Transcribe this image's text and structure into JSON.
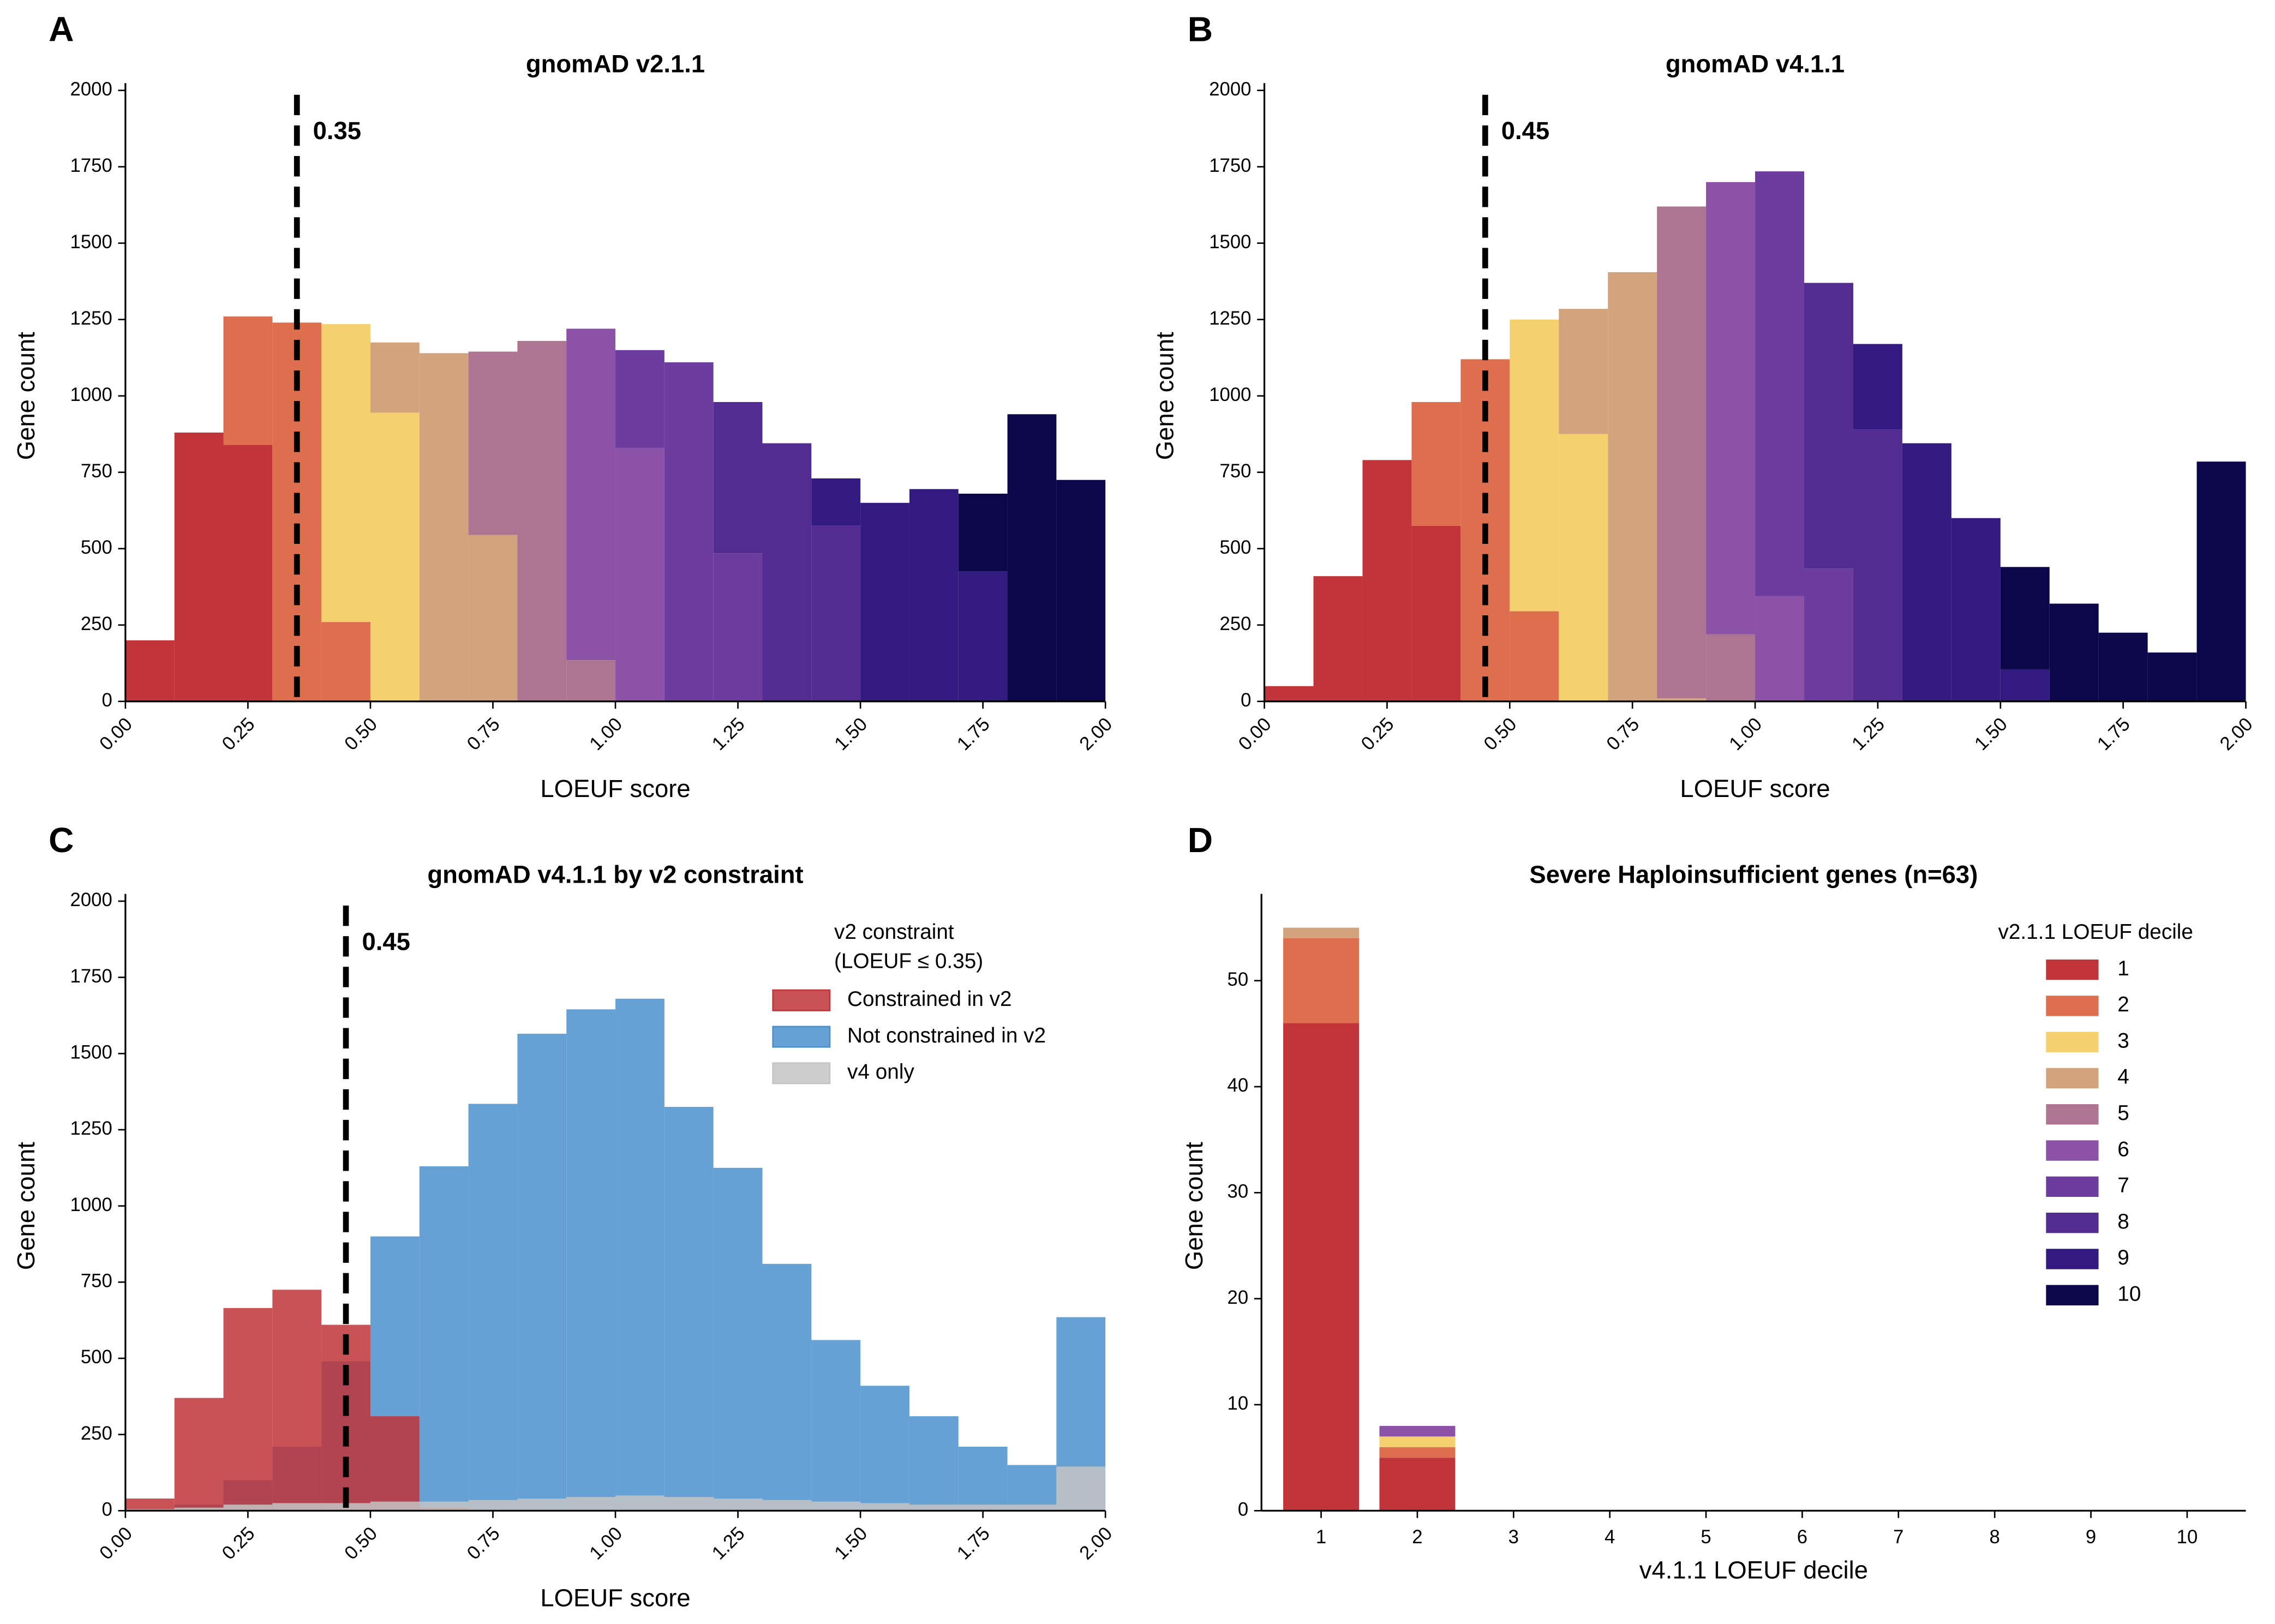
{
  "chart_data": [
    {
      "panel": "A",
      "type": "histogram",
      "stacked": true,
      "title": "gnomAD v2.1.1",
      "x_label": "LOEUF score",
      "y_label": "Gene count",
      "bins": [
        0,
        0.1,
        0.2,
        0.3,
        0.4,
        0.5,
        0.6,
        0.7,
        0.8,
        0.9,
        1.0,
        1.1,
        1.2,
        1.3,
        1.4,
        1.5,
        1.6,
        1.7,
        1.8,
        1.9,
        2.0
      ],
      "series": [
        {
          "color": "#c0343a",
          "values": [
            200,
            880,
            840,
            0,
            0,
            0,
            0,
            0,
            0,
            0,
            0,
            0,
            0,
            0,
            0,
            0,
            0,
            0,
            0,
            0
          ]
        },
        {
          "color": "#dd6e4e",
          "values": [
            0,
            0,
            420,
            1240,
            260,
            0,
            0,
            0,
            0,
            0,
            0,
            0,
            0,
            0,
            0,
            0,
            0,
            0,
            0,
            0
          ]
        },
        {
          "color": "#f5d06e",
          "values": [
            0,
            0,
            0,
            0,
            975,
            945,
            0,
            0,
            0,
            0,
            0,
            0,
            0,
            0,
            0,
            0,
            0,
            0,
            0,
            0
          ]
        },
        {
          "color": "#d3a37e",
          "values": [
            0,
            0,
            0,
            0,
            0,
            230,
            1140,
            545,
            0,
            0,
            0,
            0,
            0,
            0,
            0,
            0,
            0,
            0,
            0,
            0
          ]
        },
        {
          "color": "#ae7592",
          "values": [
            0,
            0,
            0,
            0,
            0,
            0,
            0,
            600,
            1180,
            135,
            0,
            0,
            0,
            0,
            0,
            0,
            0,
            0,
            0,
            0
          ]
        },
        {
          "color": "#8b52a8",
          "values": [
            0,
            0,
            0,
            0,
            0,
            0,
            0,
            0,
            0,
            1085,
            830,
            0,
            0,
            0,
            0,
            0,
            0,
            0,
            0,
            0
          ]
        },
        {
          "color": "#6c3d9e",
          "values": [
            0,
            0,
            0,
            0,
            0,
            0,
            0,
            0,
            0,
            0,
            320,
            1110,
            485,
            0,
            0,
            0,
            0,
            0,
            0,
            0
          ]
        },
        {
          "color": "#532c91",
          "values": [
            0,
            0,
            0,
            0,
            0,
            0,
            0,
            0,
            0,
            0,
            0,
            0,
            495,
            845,
            575,
            0,
            0,
            0,
            0,
            0
          ]
        },
        {
          "color": "#321a80",
          "values": [
            0,
            0,
            0,
            0,
            0,
            0,
            0,
            0,
            0,
            0,
            0,
            0,
            0,
            0,
            155,
            650,
            695,
            425,
            0,
            0
          ]
        },
        {
          "color": "#0c064a",
          "values": [
            0,
            0,
            0,
            0,
            0,
            0,
            0,
            0,
            0,
            0,
            0,
            0,
            0,
            0,
            0,
            0,
            0,
            255,
            940,
            725
          ]
        }
      ],
      "vline": 0.35,
      "xlim": [
        0,
        2
      ],
      "ylim": [
        0,
        2000
      ],
      "xticks": [
        {
          "value": 0,
          "label": "0.00"
        },
        {
          "value": 0.25,
          "label": "0.25"
        },
        {
          "value": 0.5,
          "label": "0.50"
        },
        {
          "value": 0.75,
          "label": "0.75"
        },
        {
          "value": 1,
          "label": "1.00"
        },
        {
          "value": 1.25,
          "label": "1.25"
        },
        {
          "value": 1.5,
          "label": "1.50"
        },
        {
          "value": 1.75,
          "label": "1.75"
        },
        {
          "value": 2,
          "label": "2.00"
        }
      ],
      "yticks": [
        0,
        250,
        500,
        750,
        1000,
        1250,
        1500,
        1750,
        2000
      ]
    },
    {
      "panel": "B",
      "type": "histogram",
      "stacked": true,
      "title": "gnomAD v4.1.1",
      "x_label": "LOEUF score",
      "y_label": "Gene count",
      "bins": [
        0,
        0.1,
        0.2,
        0.3,
        0.4,
        0.5,
        0.6,
        0.7,
        0.8,
        0.9,
        1.0,
        1.1,
        1.2,
        1.3,
        1.4,
        1.5,
        1.6,
        1.7,
        1.8,
        1.9,
        2.0
      ],
      "series": [
        {
          "color": "#c0343a",
          "values": [
            50,
            410,
            790,
            575,
            0,
            0,
            0,
            0,
            0,
            0,
            0,
            0,
            0,
            0,
            0,
            0,
            0,
            0,
            0,
            0
          ]
        },
        {
          "color": "#dd6e4e",
          "values": [
            0,
            0,
            0,
            405,
            1120,
            295,
            0,
            0,
            0,
            0,
            0,
            0,
            0,
            0,
            0,
            0,
            0,
            0,
            0,
            0
          ]
        },
        {
          "color": "#f5d06e",
          "values": [
            0,
            0,
            0,
            0,
            0,
            955,
            875,
            0,
            0,
            0,
            0,
            0,
            0,
            0,
            0,
            0,
            0,
            0,
            0,
            0
          ]
        },
        {
          "color": "#d3a37e",
          "values": [
            0,
            0,
            0,
            0,
            0,
            0,
            410,
            1405,
            10,
            0,
            0,
            0,
            0,
            0,
            0,
            0,
            0,
            0,
            0,
            0
          ]
        },
        {
          "color": "#ae7592",
          "values": [
            0,
            0,
            0,
            0,
            0,
            0,
            0,
            0,
            1610,
            220,
            0,
            0,
            0,
            0,
            0,
            0,
            0,
            0,
            0,
            0
          ]
        },
        {
          "color": "#8b52a8",
          "values": [
            0,
            0,
            0,
            0,
            0,
            0,
            0,
            0,
            0,
            1480,
            345,
            0,
            0,
            0,
            0,
            0,
            0,
            0,
            0,
            0
          ]
        },
        {
          "color": "#6c3d9e",
          "values": [
            0,
            0,
            0,
            0,
            0,
            0,
            0,
            0,
            0,
            0,
            1390,
            435,
            0,
            0,
            0,
            0,
            0,
            0,
            0,
            0
          ]
        },
        {
          "color": "#532c91",
          "values": [
            0,
            0,
            0,
            0,
            0,
            0,
            0,
            0,
            0,
            0,
            0,
            935,
            890,
            0,
            0,
            0,
            0,
            0,
            0,
            0
          ]
        },
        {
          "color": "#321a80",
          "values": [
            0,
            0,
            0,
            0,
            0,
            0,
            0,
            0,
            0,
            0,
            0,
            0,
            280,
            845,
            600,
            105,
            0,
            0,
            0,
            0
          ]
        },
        {
          "color": "#0c064a",
          "values": [
            0,
            0,
            0,
            0,
            0,
            0,
            0,
            0,
            0,
            0,
            0,
            0,
            0,
            0,
            0,
            335,
            320,
            225,
            160,
            785
          ]
        }
      ],
      "vline": 0.45,
      "xlim": [
        0,
        2
      ],
      "ylim": [
        0,
        2000
      ],
      "xticks": [
        {
          "value": 0,
          "label": "0.00"
        },
        {
          "value": 0.25,
          "label": "0.25"
        },
        {
          "value": 0.5,
          "label": "0.50"
        },
        {
          "value": 0.75,
          "label": "0.75"
        },
        {
          "value": 1,
          "label": "1.00"
        },
        {
          "value": 1.25,
          "label": "1.25"
        },
        {
          "value": 1.5,
          "label": "1.50"
        },
        {
          "value": 1.75,
          "label": "1.75"
        },
        {
          "value": 2,
          "label": "2.00"
        }
      ],
      "yticks": [
        0,
        250,
        500,
        750,
        1000,
        1250,
        1500,
        1750,
        2000
      ]
    },
    {
      "panel": "C",
      "type": "histogram",
      "stacked": false,
      "title": "gnomAD v4.1.1 by v2 constraint",
      "x_label": "LOEUF score",
      "y_label": "Gene count",
      "legend_title": [
        "v2 constraint",
        "(LOEUF ≤ 0.35)"
      ],
      "legend": "upper right",
      "bins": [
        0,
        0.1,
        0.2,
        0.3,
        0.4,
        0.5,
        0.6,
        0.7,
        0.8,
        0.9,
        1.0,
        1.1,
        1.2,
        1.3,
        1.4,
        1.5,
        1.6,
        1.7,
        1.8,
        1.9,
        2.0
      ],
      "series": [
        {
          "name": "Constrained in v2",
          "color": "#c0343a",
          "values": [
            40,
            370,
            665,
            725,
            610,
            310,
            10,
            0,
            0,
            0,
            0,
            0,
            0,
            0,
            0,
            0,
            0,
            0,
            0,
            0
          ]
        },
        {
          "name": "Not constrained in v2",
          "color": "#4a90cd",
          "values": [
            0,
            20,
            100,
            210,
            490,
            900,
            1130,
            1335,
            1565,
            1645,
            1680,
            1325,
            1125,
            810,
            560,
            410,
            310,
            210,
            150,
            635
          ]
        },
        {
          "name": "v4 only",
          "color": "#c4c4c4",
          "values": [
            5,
            10,
            20,
            25,
            25,
            30,
            30,
            35,
            40,
            45,
            50,
            45,
            40,
            35,
            30,
            25,
            20,
            20,
            20,
            145
          ]
        }
      ],
      "vline": 0.45,
      "xlim": [
        0,
        2
      ],
      "ylim": [
        0,
        2000
      ],
      "xticks": [
        {
          "value": 0,
          "label": "0.00"
        },
        {
          "value": 0.25,
          "label": "0.25"
        },
        {
          "value": 0.5,
          "label": "0.50"
        },
        {
          "value": 0.75,
          "label": "0.75"
        },
        {
          "value": 1,
          "label": "1.00"
        },
        {
          "value": 1.25,
          "label": "1.25"
        },
        {
          "value": 1.5,
          "label": "1.50"
        },
        {
          "value": 1.75,
          "label": "1.75"
        },
        {
          "value": 2,
          "label": "2.00"
        }
      ],
      "yticks": [
        0,
        250,
        500,
        750,
        1000,
        1250,
        1500,
        1750,
        2000
      ]
    },
    {
      "panel": "D",
      "type": "bar",
      "stacked": true,
      "title": "Severe Haploinsufficient genes (n=63)",
      "x_label": "v4.1.1 LOEUF decile",
      "y_label": "Gene count",
      "legend_title": [
        "v2.1.1 LOEUF decile"
      ],
      "legend": "upper right",
      "categories": [
        "1",
        "2",
        "3",
        "4",
        "5",
        "6",
        "7",
        "8",
        "9",
        "10"
      ],
      "series": [
        {
          "name": "1",
          "color": "#c0343a",
          "values": [
            46,
            5,
            0,
            0,
            0,
            0,
            0,
            0,
            0,
            0
          ]
        },
        {
          "name": "2",
          "color": "#dd6e4e",
          "values": [
            8,
            1,
            0,
            0,
            0,
            0,
            0,
            0,
            0,
            0
          ]
        },
        {
          "name": "3",
          "color": "#f5d06e",
          "values": [
            0,
            1,
            0,
            0,
            0,
            0,
            0,
            0,
            0,
            0
          ]
        },
        {
          "name": "4",
          "color": "#d3a37e",
          "values": [
            1,
            0,
            0,
            0,
            0,
            0,
            0,
            0,
            0,
            0
          ]
        },
        {
          "name": "5",
          "color": "#ae7592",
          "values": [
            0,
            0,
            0,
            0,
            0,
            0,
            0,
            0,
            0,
            0
          ]
        },
        {
          "name": "6",
          "color": "#8b52a8",
          "values": [
            0,
            1,
            0,
            0,
            0,
            0,
            0,
            0,
            0,
            0
          ]
        },
        {
          "name": "7",
          "color": "#6c3d9e",
          "values": [
            0,
            0,
            0,
            0,
            0,
            0,
            0,
            0,
            0,
            0
          ]
        },
        {
          "name": "8",
          "color": "#532c91",
          "values": [
            0,
            0,
            0,
            0,
            0,
            0,
            0,
            0,
            0,
            0
          ]
        },
        {
          "name": "9",
          "color": "#321a80",
          "values": [
            0,
            0,
            0,
            0,
            0,
            0,
            0,
            0,
            0,
            0
          ]
        },
        {
          "name": "10",
          "color": "#0c064a",
          "values": [
            0,
            0,
            0,
            0,
            0,
            0,
            0,
            0,
            0,
            0
          ]
        }
      ],
      "ylim": [
        0,
        57.5
      ],
      "yticks": [
        0,
        10,
        20,
        30,
        40,
        50
      ]
    }
  ]
}
